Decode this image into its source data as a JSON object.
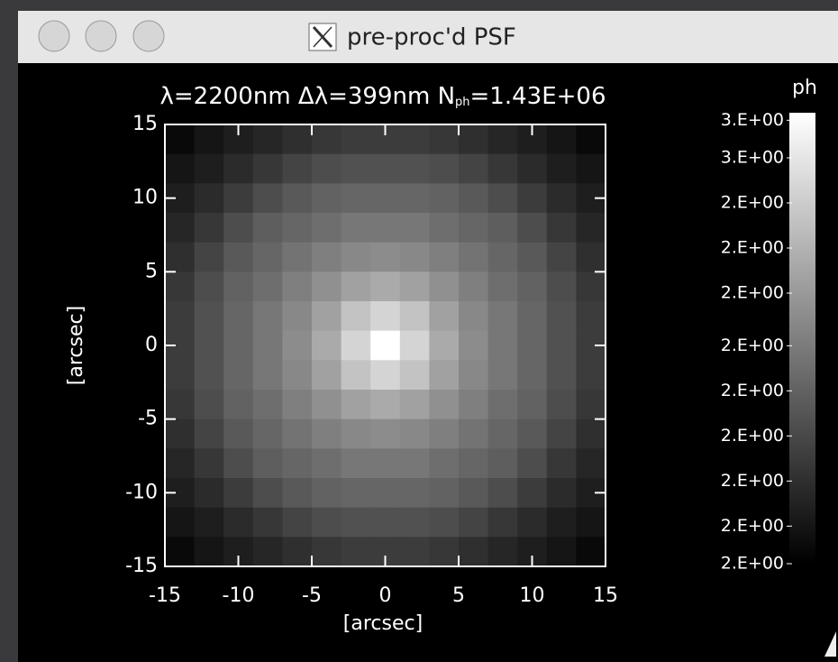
{
  "window": {
    "title": "pre-proc'd PSF"
  },
  "chart_data": {
    "type": "heatmap",
    "title": "λ=2200nm Δλ=399nm N",
    "title_subscript": "ph",
    "title_end": "=1.43E+06",
    "x_label": "[arcsec]",
    "y_label": "[arcsec]",
    "colorbar_label": "ph",
    "x": [
      -14,
      -12,
      -10,
      -8,
      -6,
      -4,
      -2,
      0,
      2,
      4,
      6,
      8,
      10,
      12,
      14
    ],
    "y": [
      14,
      12,
      10,
      8,
      6,
      4,
      2,
      0,
      -2,
      -4,
      -6,
      -8,
      -10,
      -12,
      -14
    ],
    "z": [
      [
        2.02,
        2.05,
        2.07,
        2.09,
        2.11,
        2.13,
        2.14,
        2.14,
        2.14,
        2.13,
        2.11,
        2.09,
        2.07,
        2.05,
        2.02
      ],
      [
        2.05,
        2.07,
        2.1,
        2.13,
        2.16,
        2.18,
        2.19,
        2.19,
        2.19,
        2.18,
        2.16,
        2.13,
        2.1,
        2.07,
        2.05
      ],
      [
        2.07,
        2.1,
        2.14,
        2.18,
        2.21,
        2.23,
        2.24,
        2.24,
        2.24,
        2.23,
        2.21,
        2.18,
        2.14,
        2.1,
        2.07
      ],
      [
        2.09,
        2.13,
        2.18,
        2.22,
        2.24,
        2.26,
        2.28,
        2.28,
        2.28,
        2.26,
        2.24,
        2.22,
        2.18,
        2.13,
        2.09
      ],
      [
        2.11,
        2.16,
        2.21,
        2.24,
        2.27,
        2.3,
        2.32,
        2.33,
        2.32,
        2.3,
        2.27,
        2.24,
        2.21,
        2.16,
        2.11
      ],
      [
        2.13,
        2.18,
        2.23,
        2.26,
        2.3,
        2.34,
        2.38,
        2.4,
        2.38,
        2.34,
        2.3,
        2.26,
        2.23,
        2.18,
        2.13
      ],
      [
        2.14,
        2.19,
        2.24,
        2.28,
        2.32,
        2.38,
        2.46,
        2.5,
        2.46,
        2.38,
        2.32,
        2.28,
        2.24,
        2.19,
        2.14
      ],
      [
        2.14,
        2.19,
        2.24,
        2.28,
        2.33,
        2.4,
        2.5,
        2.6,
        2.5,
        2.4,
        2.33,
        2.28,
        2.24,
        2.19,
        2.14
      ],
      [
        2.14,
        2.19,
        2.24,
        2.28,
        2.32,
        2.38,
        2.46,
        2.5,
        2.46,
        2.38,
        2.32,
        2.28,
        2.24,
        2.19,
        2.14
      ],
      [
        2.13,
        2.18,
        2.23,
        2.26,
        2.3,
        2.34,
        2.38,
        2.4,
        2.38,
        2.34,
        2.3,
        2.26,
        2.23,
        2.18,
        2.13
      ],
      [
        2.11,
        2.16,
        2.21,
        2.24,
        2.27,
        2.3,
        2.32,
        2.33,
        2.32,
        2.3,
        2.27,
        2.24,
        2.21,
        2.16,
        2.11
      ],
      [
        2.09,
        2.13,
        2.18,
        2.22,
        2.24,
        2.26,
        2.28,
        2.28,
        2.28,
        2.26,
        2.24,
        2.22,
        2.18,
        2.13,
        2.09
      ],
      [
        2.07,
        2.1,
        2.14,
        2.18,
        2.21,
        2.23,
        2.24,
        2.24,
        2.24,
        2.23,
        2.21,
        2.18,
        2.14,
        2.1,
        2.07
      ],
      [
        2.05,
        2.07,
        2.1,
        2.13,
        2.16,
        2.18,
        2.19,
        2.19,
        2.19,
        2.18,
        2.16,
        2.13,
        2.1,
        2.07,
        2.05
      ],
      [
        2.02,
        2.05,
        2.07,
        2.09,
        2.11,
        2.13,
        2.14,
        2.14,
        2.14,
        2.13,
        2.11,
        2.09,
        2.07,
        2.05,
        2.02
      ]
    ],
    "xlim": [
      -15,
      15
    ],
    "ylim": [
      -15,
      15
    ],
    "xticks": [
      -15,
      -10,
      -5,
      0,
      5,
      10,
      15
    ],
    "yticks": [
      -15,
      -10,
      -5,
      0,
      5,
      10,
      15
    ],
    "zlim": [
      2.0,
      2.6
    ],
    "colorbar_ticks": [
      {
        "value": 2.59,
        "label": "3.E+00"
      },
      {
        "value": 2.54,
        "label": "3.E+00"
      },
      {
        "value": 2.48,
        "label": "2.E+00"
      },
      {
        "value": 2.42,
        "label": "2.E+00"
      },
      {
        "value": 2.36,
        "label": "2.E+00"
      },
      {
        "value": 2.29,
        "label": "2.E+00"
      },
      {
        "value": 2.23,
        "label": "2.E+00"
      },
      {
        "value": 2.17,
        "label": "2.E+00"
      },
      {
        "value": 2.11,
        "label": "2.E+00"
      },
      {
        "value": 2.05,
        "label": "2.E+00"
      },
      {
        "value": 2.0,
        "label": "2.E+00"
      }
    ]
  }
}
